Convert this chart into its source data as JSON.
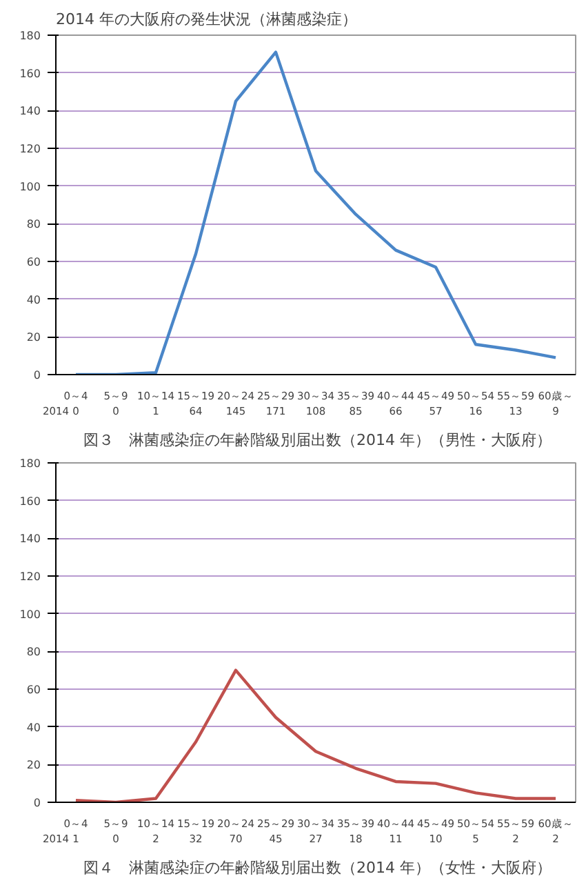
{
  "chart_data": [
    {
      "type": "line",
      "title": "2014 年の大阪府の発生状況（淋菌感染症）",
      "categories": [
        "0～4",
        "5～9",
        "10～14",
        "15～19",
        "20～24",
        "25～29",
        "30～34",
        "35～39",
        "40～44",
        "45～49",
        "50～54",
        "55～59",
        "60歳～"
      ],
      "series": [
        {
          "name": "2014",
          "color": "#4a86c8",
          "values": [
            0,
            0,
            1,
            64,
            145,
            171,
            108,
            85,
            66,
            57,
            16,
            13,
            9
          ]
        }
      ],
      "ylim": [
        0,
        180
      ],
      "yticks": [
        0,
        20,
        40,
        60,
        80,
        100,
        120,
        140,
        160,
        180
      ],
      "grid": "y",
      "data_labels": true,
      "marker": "none",
      "line_style": "solid",
      "annotations": [
        "図３　淋菌感染症の年齢階級別届出数（2014 年）（男性・大阪府）"
      ]
    },
    {
      "type": "line",
      "categories": [
        "0～4",
        "5～9",
        "10～14",
        "15～19",
        "20～24",
        "25～29",
        "30～34",
        "35～39",
        "40～44",
        "45～49",
        "50～54",
        "55～59",
        "60歳～"
      ],
      "series": [
        {
          "name": "2014",
          "color": "#c0504d",
          "values": [
            1,
            0,
            2,
            32,
            70,
            45,
            27,
            18,
            11,
            10,
            5,
            2,
            2
          ]
        }
      ],
      "ylim": [
        0,
        180
      ],
      "yticks": [
        0,
        20,
        40,
        60,
        80,
        100,
        120,
        140,
        160,
        180
      ],
      "grid": "y",
      "data_labels": true,
      "marker": "none",
      "line_style": "solid",
      "annotations": [
        "図４　淋菌感染症の年齢階級別届出数（2014 年）（女性・大阪府）"
      ]
    }
  ]
}
